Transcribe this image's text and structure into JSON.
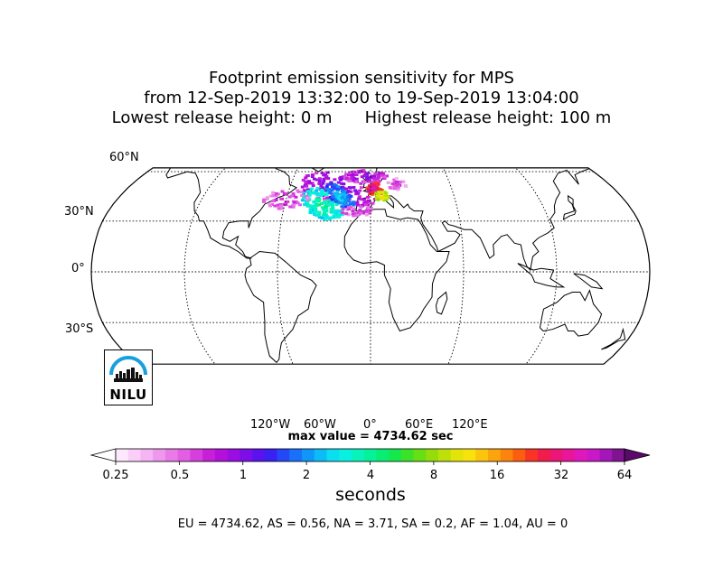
{
  "title": {
    "line1": "Footprint emission sensitivity for MPS",
    "line2": "from 12-Sep-2019 13:32:00 to 19-Sep-2019 13:04:00",
    "line3_left": "Lowest release height: 0 m",
    "line3_right": "Highest release height: 100 m"
  },
  "map": {
    "projection": "Robinson",
    "lat_labels": [
      "60°N",
      "30°N",
      "0°",
      "30°S"
    ],
    "lon_labels": [
      "120°W",
      "60°W",
      "0°",
      "60°E",
      "120°E"
    ],
    "gridlines": "dotted",
    "ocean_color": "#ffffff",
    "coastline_color": "#000000"
  },
  "max_value": "max value = 4734.62 sec",
  "colorbar": {
    "tick_labels": [
      "0.25",
      "0.5",
      "1",
      "2",
      "4",
      "8",
      "16",
      "32",
      "64"
    ],
    "unit_label": "seconds",
    "extend": "both",
    "colors": [
      "#fde8fd",
      "#f9cff8",
      "#f5b4f3",
      "#ef97ee",
      "#e97ae8",
      "#e25ee2",
      "#d63fdc",
      "#c820d8",
      "#b410dc",
      "#9a0ee2",
      "#7e0ee8",
      "#5c12ee",
      "#3a20f2",
      "#2448f6",
      "#1a70f8",
      "#1096f8",
      "#0cbcf6",
      "#0adef0",
      "#08f0e0",
      "#08f2bc",
      "#06f29a",
      "#08ee72",
      "#14e84c",
      "#3ae22a",
      "#68de14",
      "#94dc0a",
      "#bee00a",
      "#e2e40a",
      "#f8e20c",
      "#fcc40c",
      "#fca40c",
      "#fc840c",
      "#fc5e10",
      "#fa3424",
      "#f21c4c",
      "#ec1676",
      "#e8169a",
      "#de18ba",
      "#c818c8",
      "#a416b8",
      "#7e148e"
    ],
    "over_color": "#5a0a6a"
  },
  "regions_text": "EU = 4734.62,  AS = 0.56,  NA = 3.71,  SA = 0.2,  AF = 1.04,  AU = 0",
  "logo": {
    "text": "NILU",
    "arc_color": "#17a0dc"
  }
}
